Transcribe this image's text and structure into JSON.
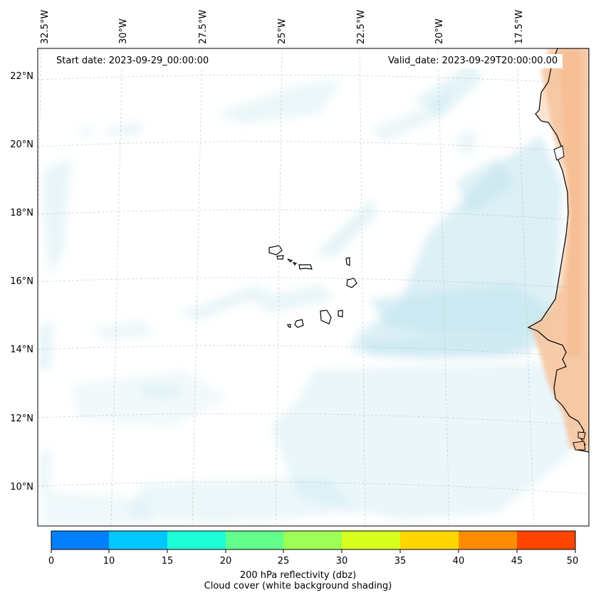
{
  "map": {
    "start_date": "Start date: 2023-09-29_00:00:00",
    "valid_date": "Valid_date: 2023-09-29T20:00:00.00",
    "lon_labels": [
      "32.5°W",
      "30°W",
      "27.5°W",
      "25°W",
      "22.5°W",
      "20°W",
      "17.5°W"
    ],
    "lat_labels": [
      "22°N",
      "20°N",
      "18°N",
      "16°N",
      "14°N",
      "12°N",
      "10°N"
    ],
    "land_color": "#f7c39c",
    "cloud_color": "#bfe4ee"
  },
  "colorbar": {
    "ticks": [
      "0",
      "10",
      "15",
      "20",
      "25",
      "30",
      "35",
      "40",
      "45",
      "50"
    ],
    "colors": [
      "#0080ff",
      "#00c8ff",
      "#1effd8",
      "#62ff8c",
      "#9cff56",
      "#d8ff1e",
      "#ffd700",
      "#ff8c00",
      "#ff4500"
    ],
    "label_line1": "200 hPa reflectivity (dbz)",
    "label_line2": "Cloud cover (white background shading)"
  }
}
